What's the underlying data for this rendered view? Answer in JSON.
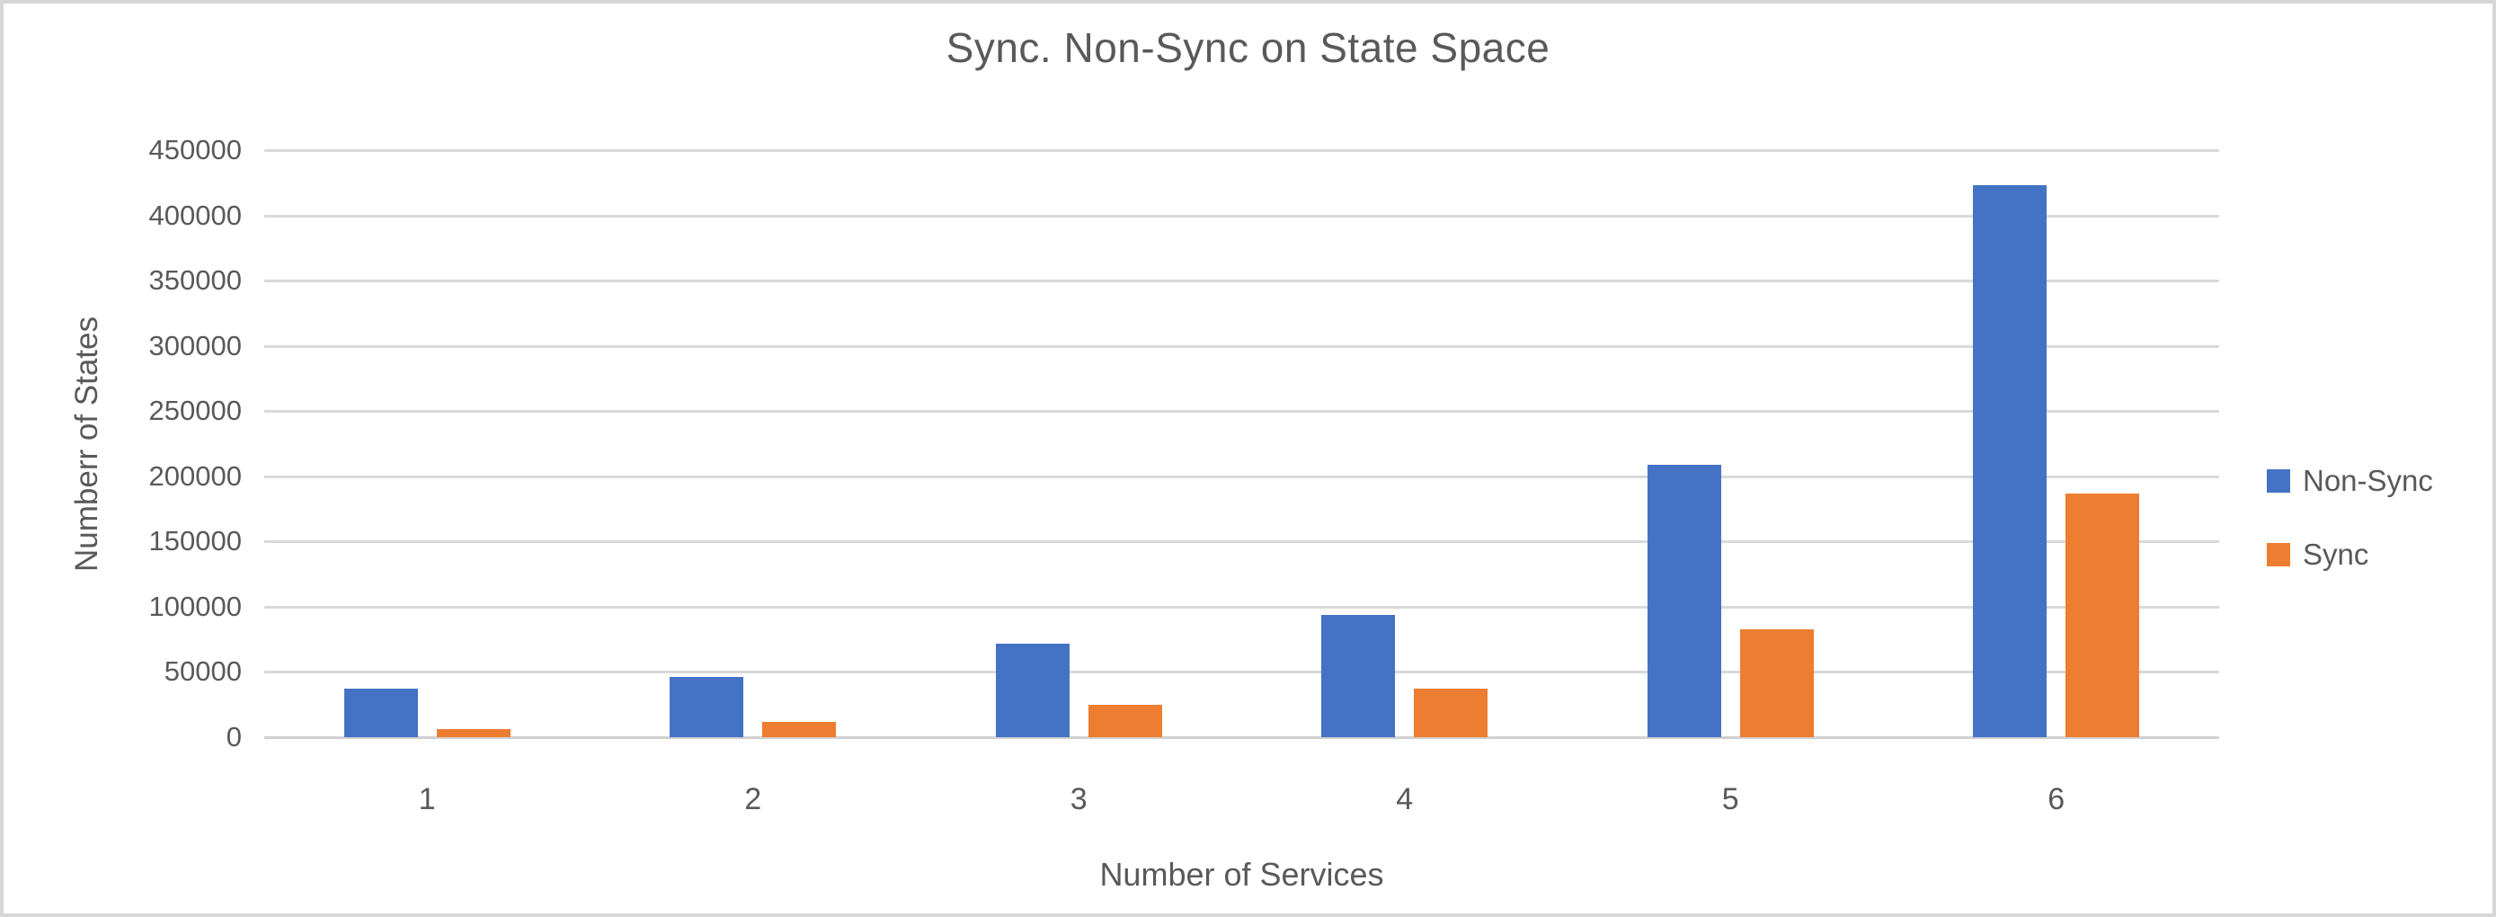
{
  "chart": {
    "title": "Sync. Non-Sync on State Space",
    "y_axis": {
      "title": "Numberr of States",
      "tick_labels": [
        "450000",
        "400000",
        "350000",
        "300000",
        "250000",
        "200000",
        "150000",
        "100000",
        "50000",
        "0"
      ]
    },
    "x_axis": {
      "title": "Number of Services",
      "categories": [
        "1",
        "2",
        "3",
        "4",
        "5",
        "6"
      ]
    },
    "legend": [
      {
        "label": "Non-Sync",
        "color": "#4472C4"
      },
      {
        "label": "Sync",
        "color": "#ED7D31"
      }
    ]
  },
  "chart_data": {
    "type": "bar",
    "title": "Sync. Non-Sync on State Space",
    "xlabel": "Number of Services",
    "ylabel": "Numberr of States",
    "categories": [
      "1",
      "2",
      "3",
      "4",
      "5",
      "6"
    ],
    "series": [
      {
        "name": "Non-Sync",
        "color": "#4472C4",
        "values": [
          37000,
          46000,
          72000,
          94000,
          209000,
          423000
        ]
      },
      {
        "name": "Sync",
        "color": "#ED7D31",
        "values": [
          6000,
          12000,
          25000,
          37000,
          83000,
          187000
        ]
      }
    ],
    "ylim": [
      0,
      450000
    ],
    "ytick_step": 50000,
    "grid": true,
    "legend_position": "right"
  },
  "colors": {
    "non_sync": "#4472C4",
    "sync": "#ED7D31",
    "gridline": "#D9D9D9",
    "text": "#595959",
    "frame_border": "#D7D7D7"
  }
}
